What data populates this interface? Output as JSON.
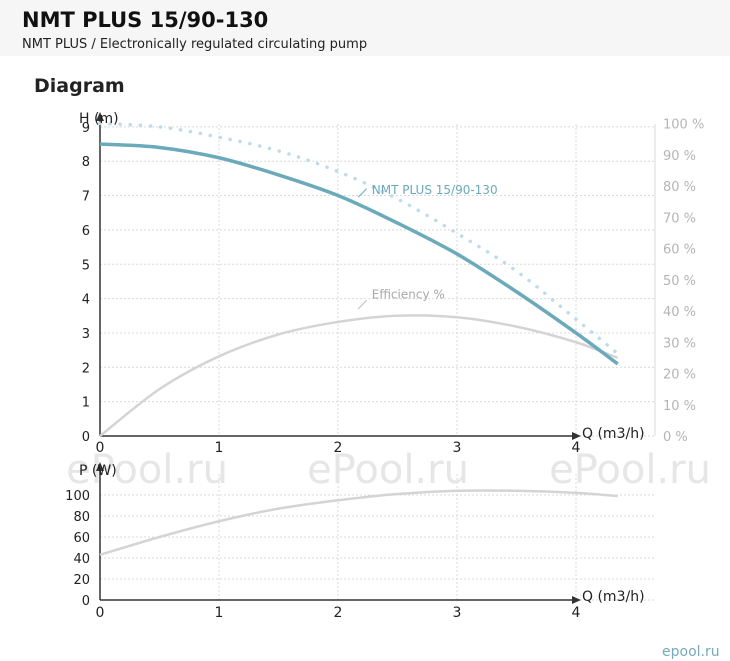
{
  "page": {
    "title": "NMT PLUS 15/90-130",
    "subtitle": "NMT PLUS / Electronically regulated circulating pump",
    "section": "Diagram",
    "watermarks": [
      "ePool.ru",
      "ePool.ru",
      "ePool.ru"
    ],
    "logo_text": "epool.ru"
  },
  "colors": {
    "head_curve": "#6aaabb",
    "max_curve": "#bcdcea",
    "efficiency_curve": "#d4d4d4",
    "power_curve": "#d4d4d4",
    "grid": "#d9d9d9",
    "right_axis_text": "#b5b5b5",
    "watermark": "#e6e6e6"
  },
  "chart_data": [
    {
      "type": "line",
      "xlabel": "Q (m3/h)",
      "ylabel": "H (m)",
      "xlim": [
        0,
        4.6
      ],
      "ylim": [
        0,
        9
      ],
      "x_ticks": [
        "0",
        "1",
        "2",
        "3",
        "4"
      ],
      "y_ticks": [
        "0",
        "1",
        "2",
        "3",
        "4",
        "5",
        "6",
        "7",
        "8",
        "9"
      ],
      "y2_label": "%",
      "y2_lim": [
        0,
        100
      ],
      "y2_ticks": [
        "0 %",
        "10 %",
        "20 %",
        "30 %",
        "40 %",
        "50 %",
        "60 %",
        "70 %",
        "80 %",
        "90 %",
        "100 %"
      ],
      "grid": true,
      "series": [
        {
          "name": "NMT PLUS 15/90-130",
          "axis": "left",
          "style": "solid",
          "x": [
            0,
            0.5,
            1.0,
            1.5,
            2.0,
            2.5,
            3.0,
            3.5,
            4.0,
            4.35
          ],
          "y": [
            8.5,
            8.4,
            8.1,
            7.6,
            7.0,
            6.2,
            5.3,
            4.2,
            3.0,
            2.1
          ]
        },
        {
          "name": "",
          "axis": "left",
          "style": "dotted",
          "x": [
            0,
            0.5,
            1.0,
            1.5,
            2.0,
            2.5,
            3.0,
            3.5,
            4.0,
            4.35
          ],
          "y": [
            9.1,
            9.0,
            8.7,
            8.3,
            7.7,
            6.9,
            5.9,
            4.8,
            3.4,
            2.4
          ]
        },
        {
          "name": "Efficiency %",
          "axis": "right",
          "style": "solid",
          "x": [
            0,
            0.5,
            1.0,
            1.5,
            2.0,
            2.5,
            3.0,
            3.5,
            4.0,
            4.35
          ],
          "y": [
            0,
            15,
            25.5,
            32.5,
            36.5,
            38.5,
            38,
            35,
            30,
            25
          ]
        }
      ],
      "annotations": [
        {
          "text": "NMT PLUS 15/90-130",
          "x": 2.25,
          "y": 7.1
        },
        {
          "text": "Efficiency %",
          "x": 2.25,
          "y": 3.95
        }
      ]
    },
    {
      "type": "line",
      "xlabel": "Q (m3/h)",
      "ylabel": "P (W)",
      "xlim": [
        0,
        4.6
      ],
      "ylim": [
        0,
        110
      ],
      "x_ticks": [
        "0",
        "1",
        "2",
        "3",
        "4"
      ],
      "y_ticks": [
        "0",
        "20",
        "40",
        "60",
        "80",
        "100"
      ],
      "grid": true,
      "series": [
        {
          "name": "",
          "style": "solid",
          "x": [
            0,
            0.5,
            1.0,
            1.5,
            2.0,
            2.5,
            3.0,
            3.5,
            4.0,
            4.35
          ],
          "y": [
            43,
            60,
            75,
            87,
            95,
            101,
            104,
            104,
            102,
            99
          ]
        }
      ]
    }
  ]
}
